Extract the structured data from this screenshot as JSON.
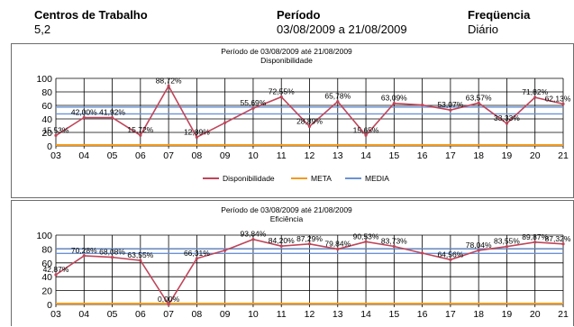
{
  "header": {
    "centros_label": "Centros de Trabalho",
    "centros_value": "5,2",
    "periodo_label": "Período",
    "periodo_value": "03/08/2009 a 21/08/2009",
    "frequencia_label": "Freqüencia",
    "frequencia_value": "Diário"
  },
  "colors": {
    "series": "#c0455a",
    "meta": "#f39a1d",
    "media": "#6b93d6",
    "grid": "#000000"
  },
  "chart_data": [
    {
      "type": "line",
      "title": "Período de 03/08/2009 até 21/08/2009",
      "subtitle": "Disponibilidade",
      "categories": [
        "03",
        "04",
        "05",
        "06",
        "07",
        "08",
        "09",
        "10",
        "11",
        "12",
        "13",
        "14",
        "15",
        "16",
        "17",
        "18",
        "19",
        "20",
        "21"
      ],
      "series": [
        {
          "name": "Disponibilidade",
          "values": [
            15.53,
            42.0,
            41.92,
            15.72,
            88.72,
            12.89,
            34.3,
            55.69,
            72.55,
            28.89,
            65.78,
            15.65,
            63.09,
            60.5,
            53.07,
            63.57,
            33.33,
            71.82,
            62.13
          ],
          "labels": [
            "15,53%",
            "42,00%",
            "41,92%",
            "15,72%",
            "88,72%",
            "12,89%",
            "",
            "55,69%",
            "72,55%",
            "28,89%",
            "65,78%",
            "15,65%",
            "63,09%",
            "",
            "53,07%",
            "63,57%",
            "33,33%",
            "71,82%",
            "62,13%"
          ]
        },
        {
          "name": "META",
          "values": [
            0,
            0,
            0,
            0,
            0,
            0,
            0,
            0,
            0,
            0,
            0,
            0,
            0,
            0,
            0,
            0,
            0,
            0,
            0
          ]
        },
        {
          "name": "MEDIA",
          "values": [
            47.4,
            47.4,
            47.4,
            47.4,
            47.4,
            47.4,
            47.4,
            47.4,
            47.4,
            47.4,
            47.4,
            47.4,
            47.4,
            47.4,
            47.4,
            47.4,
            47.4,
            47.4,
            47.4
          ]
        }
      ],
      "extra_hline": 57.4,
      "yticks": [
        0,
        20,
        40,
        60,
        80,
        100
      ],
      "ylim": [
        0,
        100
      ],
      "legend": "bottom",
      "grid": true
    },
    {
      "type": "line",
      "title": "Período de 03/08/2009 até 21/08/2009",
      "subtitle": "Eficiência",
      "categories": [
        "03",
        "04",
        "05",
        "06",
        "07",
        "08",
        "09",
        "10",
        "11",
        "12",
        "13",
        "14",
        "15",
        "16",
        "17",
        "18",
        "19",
        "20",
        "21"
      ],
      "series": [
        {
          "name": "Eficiência",
          "values": [
            42.87,
            70.28,
            68.08,
            63.55,
            0.0,
            66.31,
            78.0,
            93.84,
            84.2,
            87.29,
            79.84,
            90.53,
            83.73,
            74.0,
            64.56,
            78.04,
            83.55,
            89.87,
            87.32
          ],
          "labels": [
            "42,87%",
            "70,28%",
            "68,08%",
            "63,55%",
            "0,00%",
            "66,31%",
            "",
            "93,84%",
            "84,20%",
            "87,29%",
            "79,84%",
            "90,53%",
            "83,73%",
            "",
            "64,56%",
            "78,04%",
            "83,55%",
            "89,87%",
            "87,32%"
          ]
        },
        {
          "name": "META",
          "values": [
            0,
            0,
            0,
            0,
            0,
            0,
            0,
            0,
            0,
            0,
            0,
            0,
            0,
            0,
            0,
            0,
            0,
            0,
            0
          ]
        },
        {
          "name": "MEDIA",
          "values": [
            73.6,
            73.6,
            73.6,
            73.6,
            73.6,
            73.6,
            73.6,
            73.6,
            73.6,
            73.6,
            73.6,
            73.6,
            73.6,
            73.6,
            73.6,
            73.6,
            73.6,
            73.6,
            73.6
          ]
        }
      ],
      "extra_hline": 80.5,
      "yticks": [
        0,
        20,
        40,
        60,
        80,
        100
      ],
      "ylim": [
        0,
        100
      ],
      "legend": "none",
      "grid": true
    }
  ]
}
